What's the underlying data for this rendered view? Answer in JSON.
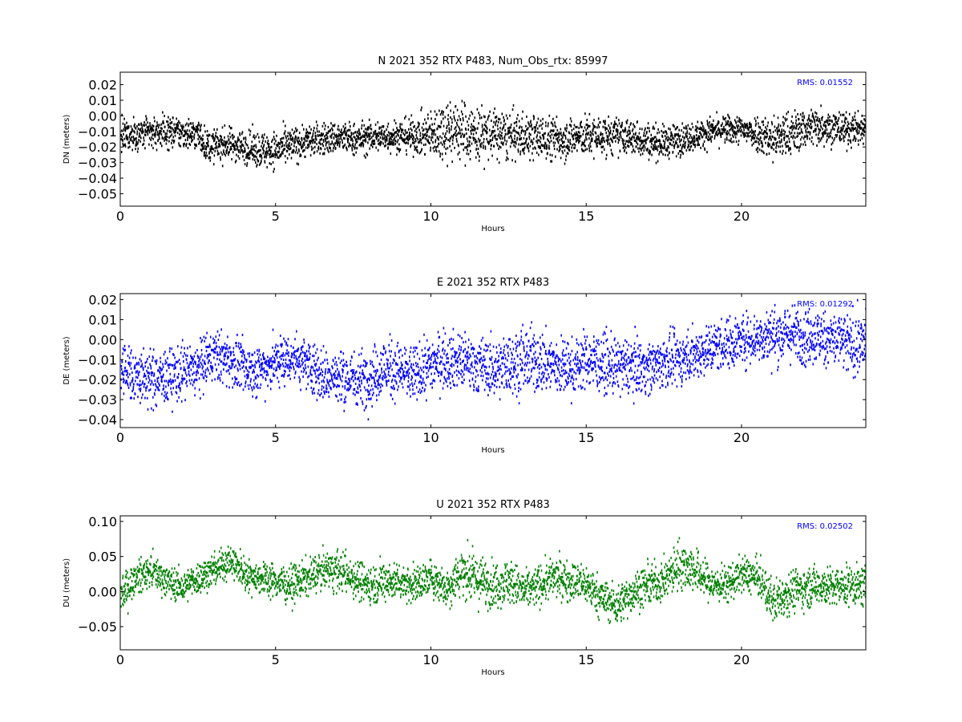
{
  "chart_data": [
    {
      "type": "scatter",
      "title": "N 2021 352 RTX  P483, Num_Obs_rtx: 85997",
      "xlabel": "Hours",
      "ylabel": "DN (meters)",
      "xlim": [
        0,
        24
      ],
      "ylim": [
        -0.058,
        0.028
      ],
      "xticks": [
        0,
        5,
        10,
        15,
        20
      ],
      "yticks": [
        0.02,
        0.01,
        0.0,
        -0.01,
        -0.02,
        -0.03,
        -0.04,
        -0.05
      ],
      "ytick_labels": [
        "0.02",
        "0.01",
        "0.00",
        "−0.01",
        "−0.02",
        "−0.03",
        "−0.04",
        "−0.05"
      ],
      "annotation": "RMS:  0.01552",
      "annotation_color": "#0000ff",
      "color": "#000000",
      "grid": false,
      "series": [
        {
          "x": [
            0,
            0.5,
            1,
            1.5,
            2,
            2.5,
            2.8,
            3,
            3.5,
            4,
            4.5,
            5,
            5.5,
            6,
            6.5,
            7,
            7.5,
            8,
            8.5,
            9,
            9.5,
            10,
            10.5,
            11,
            11.5,
            12,
            12.5,
            13,
            13.5,
            14,
            14.5,
            15,
            15.5,
            16,
            16.5,
            17,
            17.5,
            18,
            18.5,
            19,
            19.5,
            20,
            20.5,
            21,
            21.5,
            22,
            22.5,
            23,
            23.5,
            24
          ],
          "y": [
            -0.013,
            -0.012,
            -0.011,
            -0.01,
            -0.011,
            -0.012,
            -0.02,
            -0.019,
            -0.018,
            -0.02,
            -0.022,
            -0.022,
            -0.019,
            -0.016,
            -0.015,
            -0.014,
            -0.015,
            -0.014,
            -0.013,
            -0.013,
            -0.013,
            -0.012,
            -0.008,
            -0.01,
            -0.012,
            -0.012,
            -0.013,
            -0.013,
            -0.014,
            -0.015,
            -0.014,
            -0.013,
            -0.013,
            -0.013,
            -0.014,
            -0.016,
            -0.017,
            -0.015,
            -0.013,
            -0.01,
            -0.009,
            -0.009,
            -0.011,
            -0.015,
            -0.012,
            -0.008,
            -0.006,
            -0.008,
            -0.009,
            -0.008
          ],
          "spread": [
            0.008,
            0.008,
            0.008,
            0.008,
            0.008,
            0.008,
            0.008,
            0.008,
            0.008,
            0.008,
            0.009,
            0.009,
            0.009,
            0.008,
            0.008,
            0.008,
            0.008,
            0.008,
            0.008,
            0.008,
            0.009,
            0.012,
            0.016,
            0.015,
            0.014,
            0.013,
            0.012,
            0.011,
            0.011,
            0.011,
            0.01,
            0.01,
            0.01,
            0.009,
            0.009,
            0.009,
            0.008,
            0.008,
            0.007,
            0.007,
            0.007,
            0.007,
            0.009,
            0.012,
            0.011,
            0.01,
            0.01,
            0.009,
            0.008,
            0.008
          ]
        }
      ]
    },
    {
      "type": "scatter",
      "title": "E 2021 352 RTX  P483",
      "xlabel": "Hours",
      "ylabel": "DE (meters)",
      "xlim": [
        0,
        24
      ],
      "ylim": [
        -0.044,
        0.023
      ],
      "xticks": [
        0,
        5,
        10,
        15,
        20
      ],
      "yticks": [
        0.02,
        0.01,
        0.0,
        -0.01,
        -0.02,
        -0.03,
        -0.04
      ],
      "ytick_labels": [
        "0.02",
        "0.01",
        "0.00",
        "−0.01",
        "−0.02",
        "−0.03",
        "−0.04"
      ],
      "annotation": "RMS:  0.01292",
      "annotation_color": "#0000ff",
      "color": "#0000ff",
      "grid": false,
      "series": [
        {
          "x": [
            0,
            0.5,
            1,
            1.5,
            2,
            2.5,
            2.8,
            3,
            3.5,
            4,
            4.5,
            5,
            5.5,
            6,
            6.5,
            7,
            7.5,
            8,
            8.5,
            9,
            9.5,
            10,
            10.5,
            11,
            11.5,
            12,
            12.5,
            13,
            13.5,
            14,
            14.5,
            15,
            15.5,
            16,
            16.5,
            17,
            17.5,
            18,
            18.5,
            19,
            19.5,
            20,
            20.5,
            21,
            21.5,
            22,
            22.5,
            23,
            23.5,
            24
          ],
          "y": [
            -0.014,
            -0.018,
            -0.02,
            -0.019,
            -0.016,
            -0.015,
            -0.01,
            -0.008,
            -0.01,
            -0.015,
            -0.015,
            -0.011,
            -0.009,
            -0.012,
            -0.018,
            -0.019,
            -0.02,
            -0.019,
            -0.014,
            -0.016,
            -0.018,
            -0.012,
            -0.01,
            -0.011,
            -0.013,
            -0.015,
            -0.012,
            -0.01,
            -0.011,
            -0.013,
            -0.015,
            -0.01,
            -0.012,
            -0.014,
            -0.013,
            -0.014,
            -0.011,
            -0.01,
            -0.007,
            -0.004,
            -0.002,
            0.0,
            0.001,
            0.002,
            0.003,
            0.002,
            0.001,
            0.0,
            -0.003,
            -0.002
          ],
          "spread": [
            0.011,
            0.011,
            0.011,
            0.011,
            0.011,
            0.011,
            0.01,
            0.01,
            0.01,
            0.01,
            0.01,
            0.01,
            0.01,
            0.01,
            0.011,
            0.011,
            0.011,
            0.011,
            0.012,
            0.011,
            0.011,
            0.011,
            0.011,
            0.011,
            0.011,
            0.011,
            0.012,
            0.013,
            0.012,
            0.012,
            0.011,
            0.011,
            0.011,
            0.011,
            0.011,
            0.01,
            0.01,
            0.01,
            0.01,
            0.01,
            0.01,
            0.01,
            0.01,
            0.011,
            0.011,
            0.011,
            0.011,
            0.011,
            0.012,
            0.012
          ]
        }
      ]
    },
    {
      "type": "scatter",
      "title": "U 2021 352 RTX  P483",
      "xlabel": "Hours",
      "ylabel": "DU (meters)",
      "xlim": [
        0,
        24
      ],
      "ylim": [
        -0.083,
        0.108
      ],
      "xticks": [
        0,
        5,
        10,
        15,
        20
      ],
      "yticks": [
        0.1,
        0.05,
        0.0,
        -0.05
      ],
      "ytick_labels": [
        "0.10",
        "0.05",
        "0.00",
        "−0.05"
      ],
      "annotation": "RMS:  0.02502",
      "annotation_color": "#0000ff",
      "color": "#008000",
      "grid": false,
      "series": [
        {
          "x": [
            0,
            0.5,
            1,
            1.5,
            2,
            2.5,
            3,
            3.5,
            4,
            4.5,
            5,
            5.5,
            6,
            6.5,
            7,
            7.5,
            8,
            8.5,
            9,
            9.5,
            10,
            10.5,
            11,
            11.5,
            12,
            12.5,
            13,
            13.5,
            14,
            14.5,
            15,
            15.5,
            16,
            16.5,
            17,
            17.5,
            18,
            18.5,
            19,
            19.5,
            20,
            20.5,
            21,
            21.5,
            22,
            22.5,
            23,
            23.5,
            24
          ],
          "y": [
            -0.005,
            0.02,
            0.03,
            0.015,
            0.005,
            0.02,
            0.03,
            0.045,
            0.025,
            0.02,
            0.015,
            0.01,
            0.02,
            0.03,
            0.03,
            0.02,
            0.01,
            0.015,
            0.015,
            0.01,
            0.02,
            0.005,
            0.03,
            0.015,
            0.01,
            0.015,
            0.0,
            0.01,
            0.02,
            0.015,
            0.01,
            -0.01,
            -0.02,
            0.0,
            0.01,
            0.015,
            0.04,
            0.03,
            0.01,
            0.01,
            0.025,
            0.02,
            -0.015,
            0.0,
            0.005,
            0.01,
            0.005,
            0.01,
            0.005
          ],
          "spread": [
            0.02,
            0.018,
            0.018,
            0.018,
            0.018,
            0.018,
            0.018,
            0.02,
            0.018,
            0.018,
            0.02,
            0.02,
            0.02,
            0.02,
            0.022,
            0.022,
            0.022,
            0.022,
            0.02,
            0.02,
            0.02,
            0.022,
            0.028,
            0.028,
            0.025,
            0.025,
            0.022,
            0.022,
            0.022,
            0.022,
            0.022,
            0.022,
            0.022,
            0.022,
            0.022,
            0.022,
            0.028,
            0.024,
            0.02,
            0.02,
            0.02,
            0.02,
            0.024,
            0.024,
            0.022,
            0.022,
            0.022,
            0.022,
            0.022
          ]
        }
      ]
    }
  ]
}
